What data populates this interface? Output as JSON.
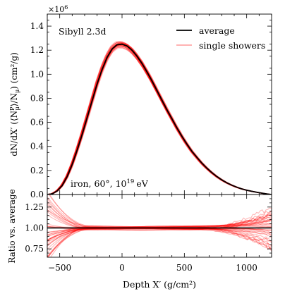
{
  "chart_data": [
    {
      "type": "line",
      "panel": "main",
      "annotation_model": "Sibyll 2.3d",
      "annotation_primary": "iron, 60°, 10",
      "annotation_exponent": "19",
      "annotation_unit": "eV",
      "ylabel": "dN/dX′ (⟨N",
      "ylabel_sup": "P",
      "ylabel_sub": "μ",
      "ylabel_mid": "⟩/N",
      "ylabel_sub2": "μ",
      "ylabel_end": ") (cm²/g)",
      "offset_label": "×10",
      "offset_exponent": "6",
      "xlim": [
        -600,
        1200
      ],
      "ylim": [
        0,
        1.5
      ],
      "ymajor_ticks": [
        0.0,
        0.2,
        0.4,
        0.6,
        0.8,
        1.0,
        1.2,
        1.4
      ],
      "ytick_labels": [
        "0.0",
        "0.2",
        "0.4",
        "0.6",
        "0.8",
        "1.0",
        "1.2",
        "1.4"
      ],
      "legend_position": "top-right",
      "series": [
        {
          "name": "average",
          "color": "#000000",
          "x": [
            -600,
            -560,
            -520,
            -480,
            -440,
            -400,
            -360,
            -320,
            -280,
            -240,
            -200,
            -160,
            -120,
            -80,
            -40,
            0,
            40,
            80,
            120,
            160,
            200,
            240,
            280,
            320,
            360,
            400,
            440,
            480,
            520,
            560,
            600,
            640,
            680,
            720,
            760,
            800,
            840,
            880,
            920,
            960,
            1000,
            1040,
            1080,
            1120,
            1160,
            1200
          ],
          "y": [
            0.0,
            0.006,
            0.03,
            0.075,
            0.15,
            0.25,
            0.37,
            0.5,
            0.64,
            0.78,
            0.92,
            1.04,
            1.14,
            1.21,
            1.245,
            1.25,
            1.235,
            1.2,
            1.15,
            1.09,
            1.02,
            0.945,
            0.865,
            0.785,
            0.705,
            0.63,
            0.555,
            0.485,
            0.42,
            0.36,
            0.31,
            0.262,
            0.22,
            0.183,
            0.15,
            0.122,
            0.098,
            0.078,
            0.061,
            0.047,
            0.036,
            0.027,
            0.019,
            0.012,
            0.005,
            0.0
          ]
        },
        {
          "name": "single showers",
          "color": "#ff0000",
          "count": 40
        }
      ]
    },
    {
      "type": "line",
      "panel": "ratio",
      "xlabel": "Depth X′ (g/cm²)",
      "ylabel": "Ratio vs. average",
      "xlim": [
        -600,
        1200
      ],
      "ylim": [
        0.65,
        1.4
      ],
      "ymajor_ticks": [
        0.75,
        1.0,
        1.25
      ],
      "ytick_labels": [
        "0.75",
        "1.00",
        "1.25"
      ],
      "xmajor_ticks": [
        -500,
        0,
        500,
        1000
      ],
      "xtick_labels": [
        "−500",
        "0",
        "500",
        "1000"
      ],
      "reference_line": 1.0
    }
  ]
}
